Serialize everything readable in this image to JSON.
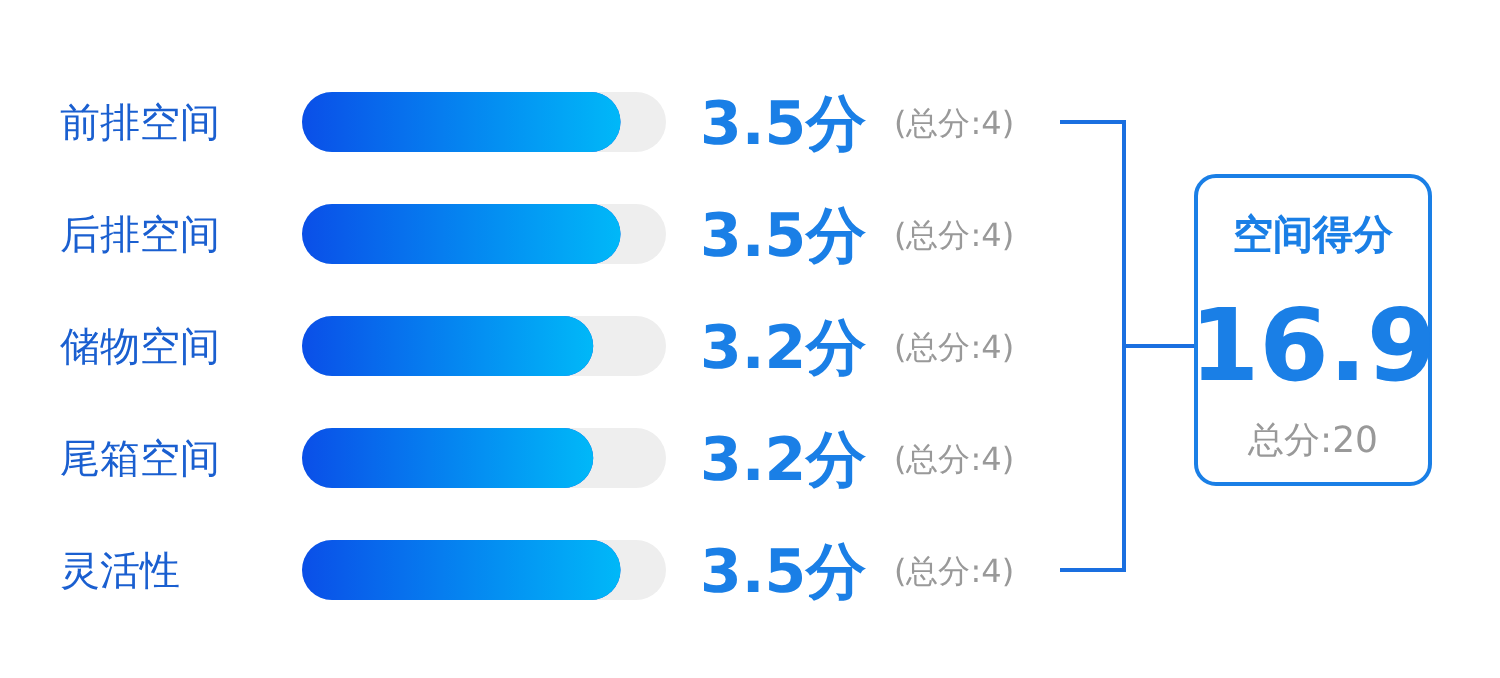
{
  "chart_data": {
    "type": "bar",
    "orientation": "horizontal",
    "categories": [
      "前排空间",
      "后排空间",
      "储物空间",
      "尾箱空间",
      "灵活性"
    ],
    "values": [
      3.5,
      3.5,
      3.2,
      3.2,
      3.5
    ],
    "value_labels": [
      "3.5分",
      "3.5分",
      "3.2分",
      "3.2分",
      "3.5分"
    ],
    "color": "#0a4fe8",
    "xlim": [
      0,
      4
    ],
    "annotations": [
      "(总分:4)",
      "(总分:4)",
      "(总分:4)",
      "(总分:4)",
      "(总分:4)",
      "空间得分",
      "16.9",
      "总分:20"
    ]
  }
}
